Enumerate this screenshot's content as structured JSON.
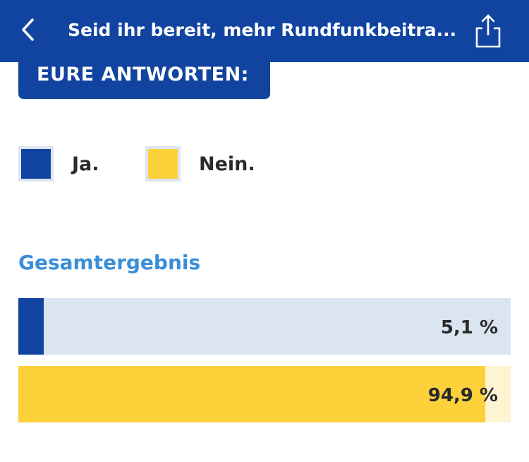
{
  "nav": {
    "title": "Seid ihr bereit, mehr Rundfunkbeitra...",
    "back_icon": "chevron-left-icon",
    "share_icon": "share-icon"
  },
  "colors": {
    "brand_blue": "#1144a0",
    "ja": "#1144a0",
    "nein": "#fdd13a",
    "ja_track": "#dbe4f1",
    "nein_track": "#fff4d2",
    "section_title": "#3a8ed8"
  },
  "answers_heading": "EURE ANTWORTEN:",
  "legend": [
    {
      "label": "Ja.",
      "color": "#1144a0"
    },
    {
      "label": "Nein.",
      "color": "#fdd13a"
    }
  ],
  "results": {
    "title": "Gesamtergebnis",
    "bars": [
      {
        "option": "Ja.",
        "value": 5.1,
        "label": "5,1 %"
      },
      {
        "option": "Nein.",
        "value": 94.9,
        "label": "94,9 %"
      }
    ]
  }
}
